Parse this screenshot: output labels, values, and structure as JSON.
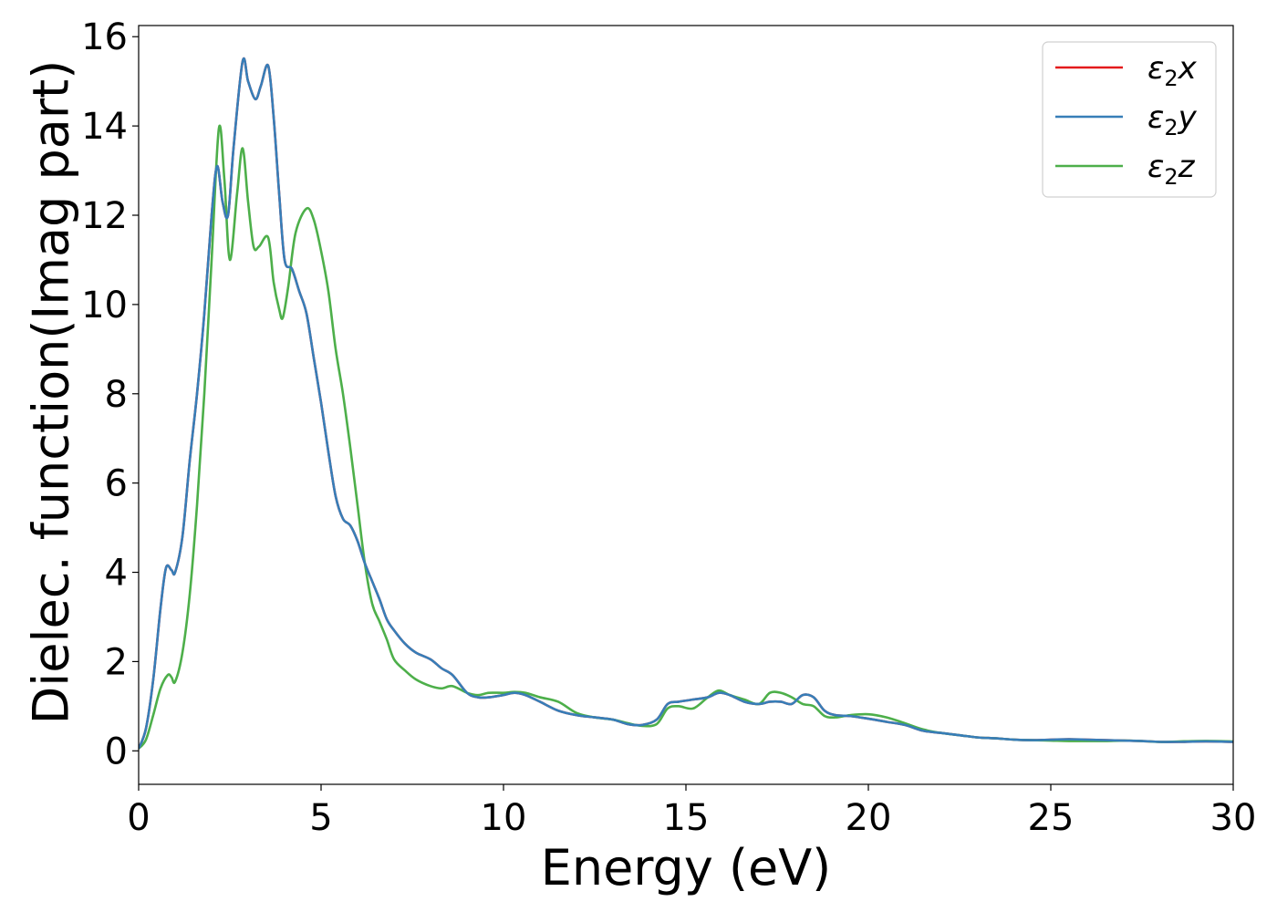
{
  "chart_data": {
    "type": "line",
    "xlabel": "Energy (eV)",
    "ylabel": "Dielec. function(Imag part)",
    "xlim": [
      0,
      30
    ],
    "ylim": [
      -0.75,
      16.25
    ],
    "xticks": [
      0,
      5,
      10,
      15,
      20,
      25,
      30
    ],
    "yticks": [
      0,
      2,
      4,
      6,
      8,
      10,
      12,
      14,
      16
    ],
    "legend_position": "top-right",
    "grid": false,
    "series": [
      {
        "name": "ε2x",
        "label_base": "ε",
        "label_sub": "2",
        "label_tail": "x",
        "color": "#e41a1c",
        "x": [
          0,
          0.2,
          0.4,
          0.6,
          0.75,
          0.9,
          1.0,
          1.2,
          1.4,
          1.6,
          1.8,
          2.0,
          2.15,
          2.3,
          2.45,
          2.6,
          2.85,
          3.0,
          3.2,
          3.35,
          3.55,
          3.7,
          3.85,
          4.0,
          4.2,
          4.4,
          4.6,
          4.8,
          5.0,
          5.2,
          5.4,
          5.6,
          5.8,
          6.0,
          6.2,
          6.4,
          6.6,
          6.8,
          7.0,
          7.3,
          7.6,
          8.0,
          8.3,
          8.6,
          9.0,
          9.3,
          9.6,
          10.0,
          10.3,
          10.6,
          11.0,
          11.5,
          12.0,
          12.5,
          13.0,
          13.4,
          13.8,
          14.2,
          14.5,
          14.8,
          15.2,
          15.6,
          15.9,
          16.2,
          16.6,
          17.0,
          17.3,
          17.6,
          17.9,
          18.2,
          18.5,
          18.8,
          19.1,
          19.5,
          20.0,
          20.5,
          21.0,
          21.5,
          22.0,
          22.5,
          23.0,
          23.5,
          24.0,
          24.5,
          25.0,
          25.5,
          26.0,
          26.5,
          27.0,
          27.5,
          28.0,
          28.5,
          29.0,
          29.5,
          30.0
        ],
        "y": [
          0.05,
          0.5,
          1.6,
          3.2,
          4.1,
          4.05,
          4.0,
          4.8,
          6.5,
          8.0,
          9.8,
          12.0,
          13.1,
          12.3,
          12.0,
          13.5,
          15.45,
          15.0,
          14.6,
          14.9,
          15.35,
          14.2,
          12.5,
          11.0,
          10.8,
          10.3,
          9.8,
          8.8,
          7.8,
          6.7,
          5.7,
          5.2,
          5.05,
          4.7,
          4.2,
          3.8,
          3.4,
          2.95,
          2.7,
          2.4,
          2.2,
          2.05,
          1.85,
          1.7,
          1.3,
          1.2,
          1.2,
          1.25,
          1.3,
          1.25,
          1.1,
          0.9,
          0.8,
          0.75,
          0.7,
          0.6,
          0.58,
          0.7,
          1.05,
          1.1,
          1.15,
          1.2,
          1.3,
          1.25,
          1.1,
          1.05,
          1.1,
          1.1,
          1.05,
          1.25,
          1.2,
          0.9,
          0.8,
          0.78,
          0.72,
          0.65,
          0.58,
          0.45,
          0.4,
          0.35,
          0.3,
          0.28,
          0.25,
          0.24,
          0.25,
          0.26,
          0.25,
          0.24,
          0.23,
          0.22,
          0.2,
          0.2,
          0.21,
          0.21,
          0.2
        ]
      },
      {
        "name": "ε2y",
        "label_base": "ε",
        "label_sub": "2",
        "label_tail": "y",
        "color": "#377eb8",
        "x": [
          0,
          0.2,
          0.4,
          0.6,
          0.75,
          0.9,
          1.0,
          1.2,
          1.4,
          1.6,
          1.8,
          2.0,
          2.15,
          2.3,
          2.45,
          2.6,
          2.85,
          3.0,
          3.2,
          3.35,
          3.55,
          3.7,
          3.85,
          4.0,
          4.2,
          4.4,
          4.6,
          4.8,
          5.0,
          5.2,
          5.4,
          5.6,
          5.8,
          6.0,
          6.2,
          6.4,
          6.6,
          6.8,
          7.0,
          7.3,
          7.6,
          8.0,
          8.3,
          8.6,
          9.0,
          9.3,
          9.6,
          10.0,
          10.3,
          10.6,
          11.0,
          11.5,
          12.0,
          12.5,
          13.0,
          13.4,
          13.8,
          14.2,
          14.5,
          14.8,
          15.2,
          15.6,
          15.9,
          16.2,
          16.6,
          17.0,
          17.3,
          17.6,
          17.9,
          18.2,
          18.5,
          18.8,
          19.1,
          19.5,
          20.0,
          20.5,
          21.0,
          21.5,
          22.0,
          22.5,
          23.0,
          23.5,
          24.0,
          24.5,
          25.0,
          25.5,
          26.0,
          26.5,
          27.0,
          27.5,
          28.0,
          28.5,
          29.0,
          29.5,
          30.0
        ],
        "y": [
          0.05,
          0.5,
          1.6,
          3.2,
          4.1,
          4.05,
          4.0,
          4.8,
          6.5,
          8.0,
          9.8,
          12.0,
          13.1,
          12.3,
          12.0,
          13.5,
          15.45,
          15.0,
          14.6,
          14.9,
          15.35,
          14.2,
          12.5,
          11.0,
          10.8,
          10.3,
          9.8,
          8.8,
          7.8,
          6.7,
          5.7,
          5.2,
          5.05,
          4.7,
          4.2,
          3.8,
          3.4,
          2.95,
          2.7,
          2.4,
          2.2,
          2.05,
          1.85,
          1.7,
          1.3,
          1.2,
          1.2,
          1.25,
          1.3,
          1.25,
          1.1,
          0.9,
          0.8,
          0.75,
          0.7,
          0.6,
          0.58,
          0.7,
          1.05,
          1.1,
          1.15,
          1.2,
          1.3,
          1.25,
          1.1,
          1.05,
          1.1,
          1.1,
          1.05,
          1.25,
          1.2,
          0.9,
          0.8,
          0.78,
          0.72,
          0.65,
          0.58,
          0.45,
          0.4,
          0.35,
          0.3,
          0.28,
          0.25,
          0.24,
          0.25,
          0.26,
          0.25,
          0.24,
          0.23,
          0.22,
          0.2,
          0.2,
          0.21,
          0.21,
          0.2
        ]
      },
      {
        "name": "ε2z",
        "label_base": "ε",
        "label_sub": "2",
        "label_tail": "z",
        "color": "#4daf4a",
        "x": [
          0,
          0.2,
          0.4,
          0.6,
          0.8,
          0.9,
          1.0,
          1.2,
          1.4,
          1.6,
          1.8,
          2.0,
          2.2,
          2.35,
          2.5,
          2.7,
          2.85,
          3.0,
          3.15,
          3.3,
          3.55,
          3.7,
          3.85,
          3.95,
          4.1,
          4.3,
          4.6,
          4.8,
          5.0,
          5.2,
          5.4,
          5.6,
          5.8,
          6.0,
          6.2,
          6.4,
          6.6,
          6.8,
          7.0,
          7.3,
          7.6,
          8.0,
          8.3,
          8.6,
          9.0,
          9.3,
          9.6,
          10.0,
          10.3,
          10.6,
          11.0,
          11.5,
          12.0,
          12.5,
          13.0,
          13.4,
          13.8,
          14.2,
          14.5,
          14.8,
          15.2,
          15.6,
          15.9,
          16.2,
          16.6,
          17.0,
          17.3,
          17.6,
          17.9,
          18.2,
          18.5,
          18.8,
          19.1,
          19.5,
          20.0,
          20.5,
          21.0,
          21.5,
          22.0,
          22.5,
          23.0,
          23.5,
          24.0,
          24.5,
          25.0,
          25.5,
          26.0,
          26.5,
          27.0,
          27.5,
          28.0,
          28.5,
          29.0,
          29.5,
          30.0
        ],
        "y": [
          0.05,
          0.25,
          0.8,
          1.4,
          1.7,
          1.65,
          1.55,
          2.2,
          3.5,
          5.5,
          8.0,
          11.0,
          13.95,
          12.8,
          11.0,
          12.5,
          13.5,
          12.3,
          11.3,
          11.3,
          11.5,
          10.5,
          9.9,
          9.7,
          10.4,
          11.6,
          12.15,
          11.9,
          11.2,
          10.3,
          9.0,
          8.0,
          6.8,
          5.5,
          4.2,
          3.3,
          2.9,
          2.5,
          2.05,
          1.8,
          1.6,
          1.45,
          1.4,
          1.45,
          1.3,
          1.25,
          1.3,
          1.3,
          1.32,
          1.3,
          1.2,
          1.1,
          0.85,
          0.75,
          0.7,
          0.62,
          0.56,
          0.6,
          0.95,
          1.0,
          0.95,
          1.2,
          1.35,
          1.25,
          1.15,
          1.05,
          1.3,
          1.3,
          1.2,
          1.05,
          1.0,
          0.78,
          0.75,
          0.8,
          0.82,
          0.75,
          0.62,
          0.48,
          0.4,
          0.35,
          0.3,
          0.28,
          0.25,
          0.24,
          0.23,
          0.22,
          0.22,
          0.22,
          0.23,
          0.22,
          0.2,
          0.21,
          0.22,
          0.22,
          0.21
        ]
      }
    ]
  }
}
